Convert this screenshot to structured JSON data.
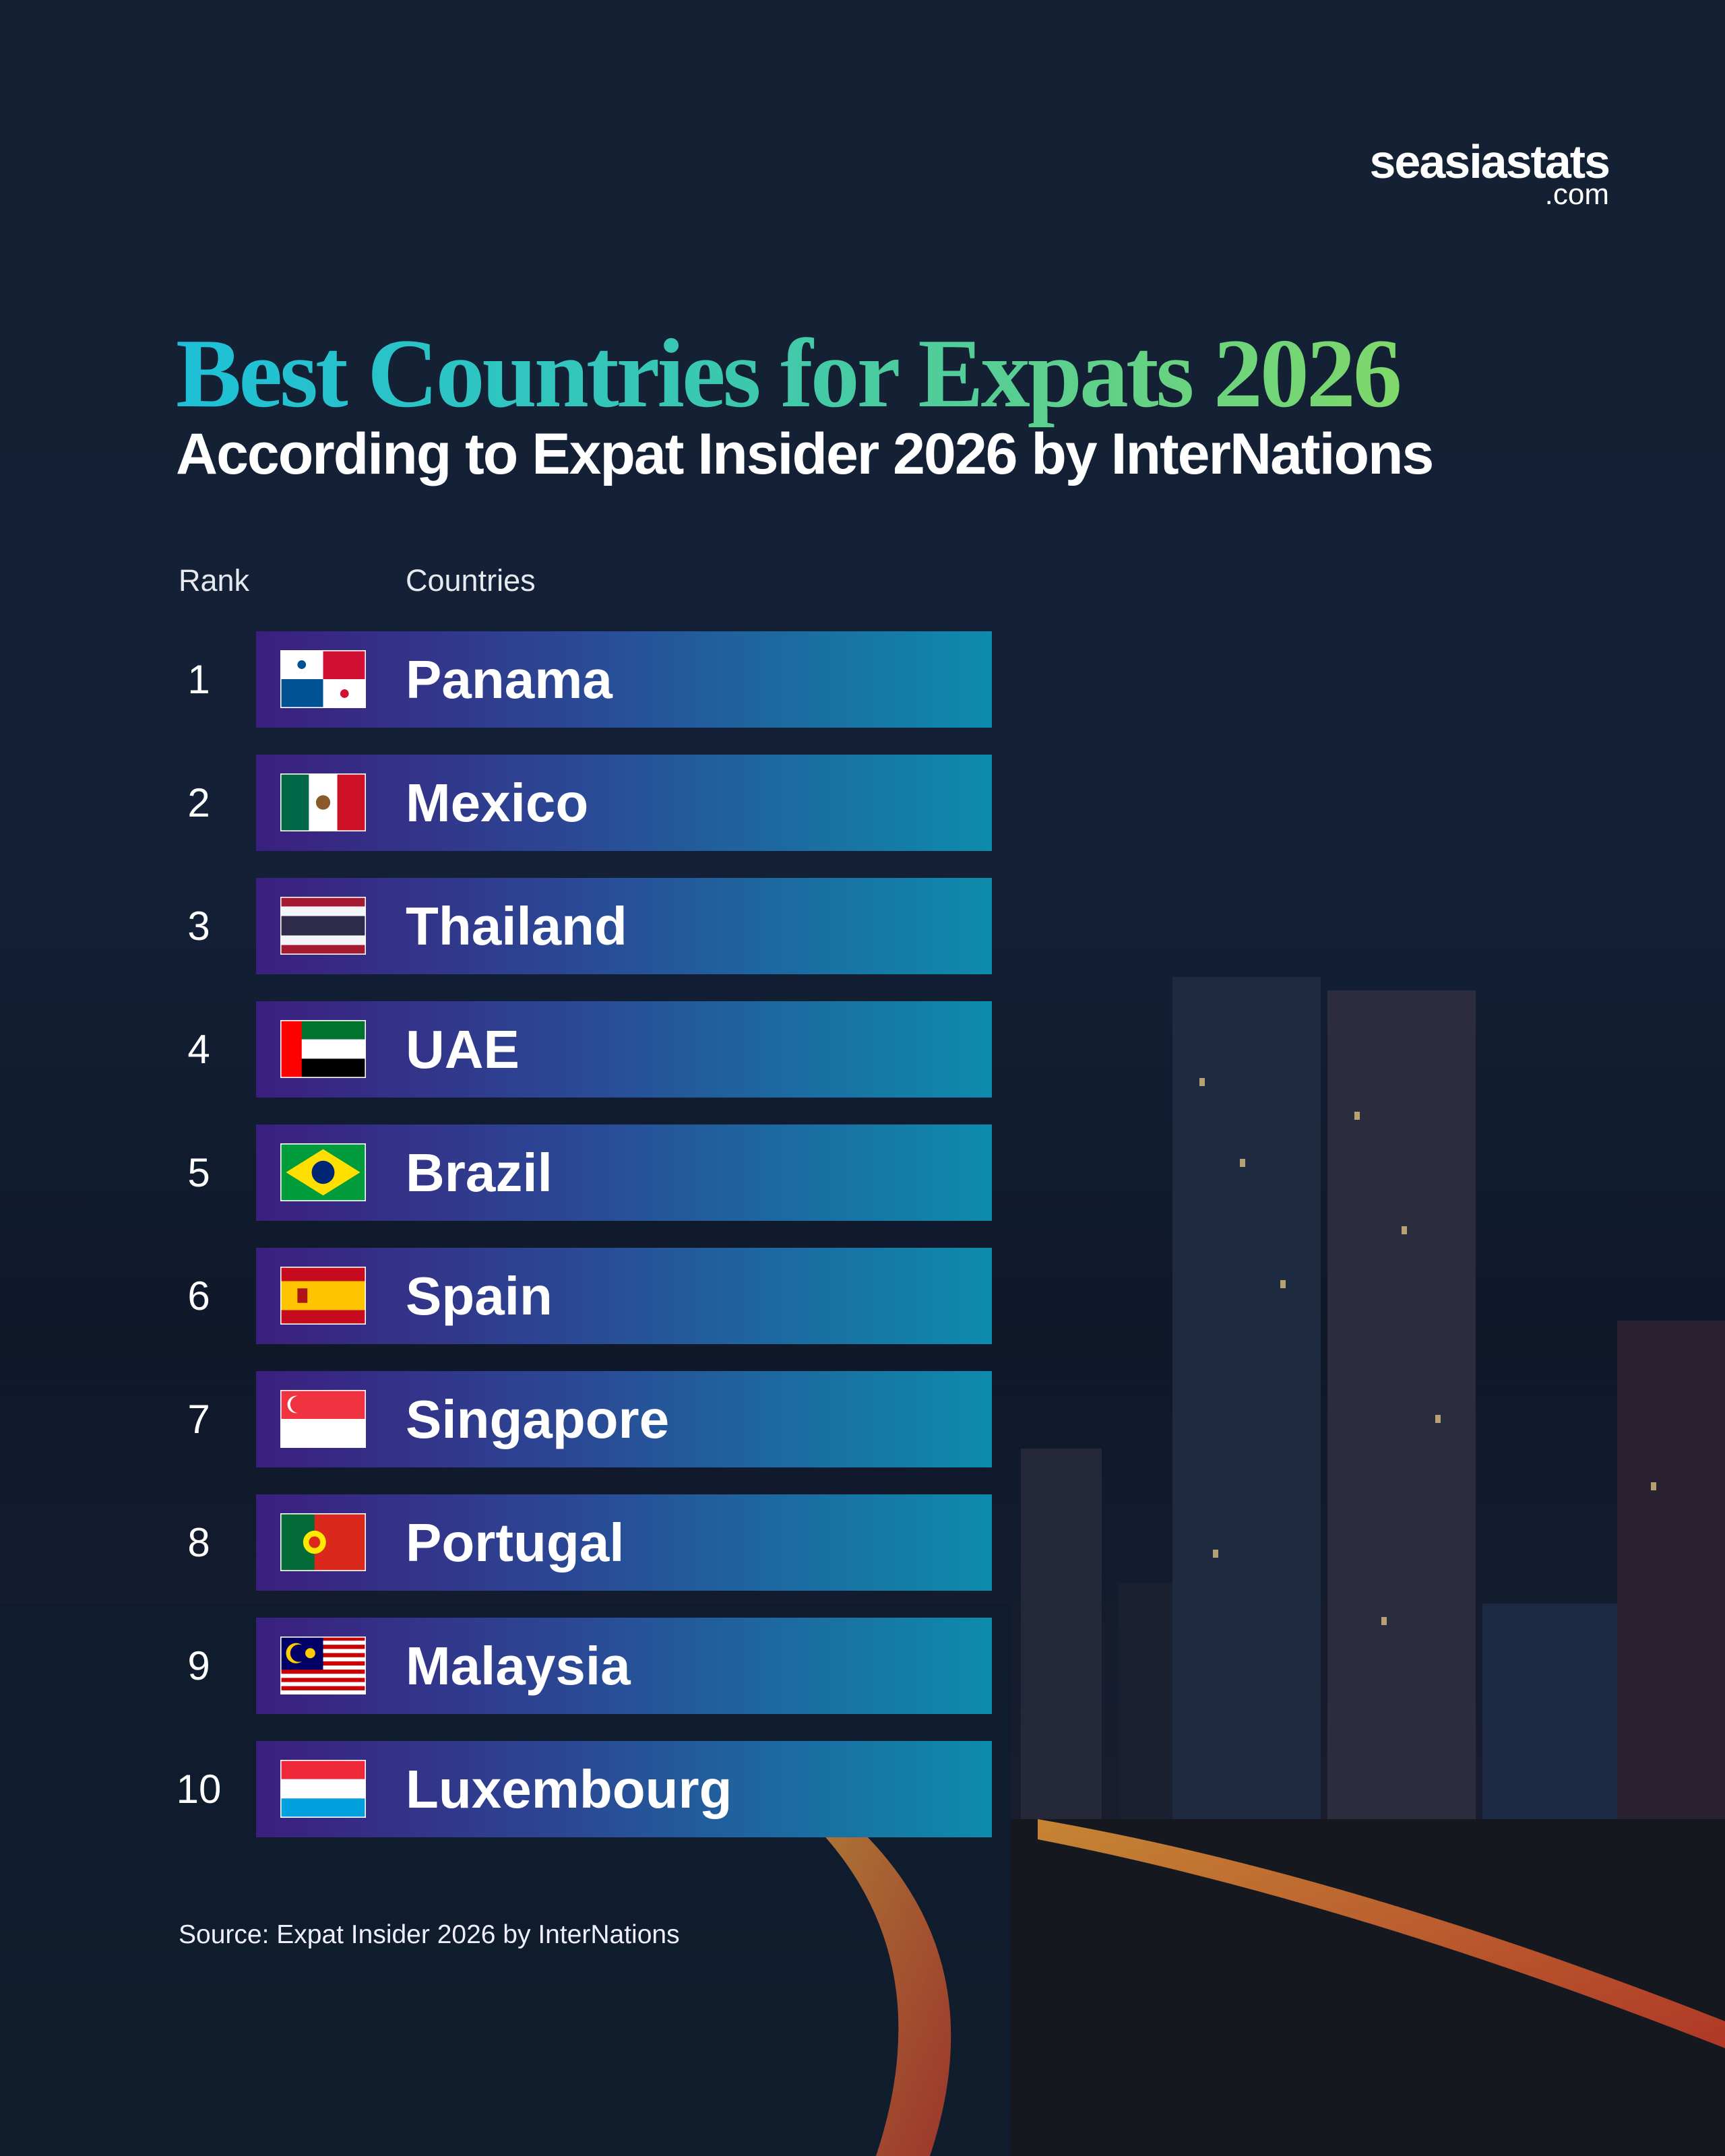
{
  "brand": {
    "name": "seasiastats",
    "suffix": ".com"
  },
  "header": {
    "title": "Best Countries for Expats 2026",
    "subtitle": "According to Expat Insider 2026 by InterNations"
  },
  "table": {
    "columns": [
      "Rank",
      "Countries"
    ],
    "rows": [
      [
        "1",
        "Panama"
      ],
      [
        "2",
        "Mexico"
      ],
      [
        "3",
        "Thailand"
      ],
      [
        "4",
        "UAE"
      ],
      [
        "5",
        "Brazil"
      ],
      [
        "6",
        "Spain"
      ],
      [
        "7",
        "Singapore"
      ],
      [
        "8",
        "Portugal"
      ],
      [
        "9",
        "Malaysia"
      ],
      [
        "10",
        "Luxembourg"
      ]
    ]
  },
  "footer": {
    "source": "Source:  Expat Insider 2026 by InterNations"
  }
}
